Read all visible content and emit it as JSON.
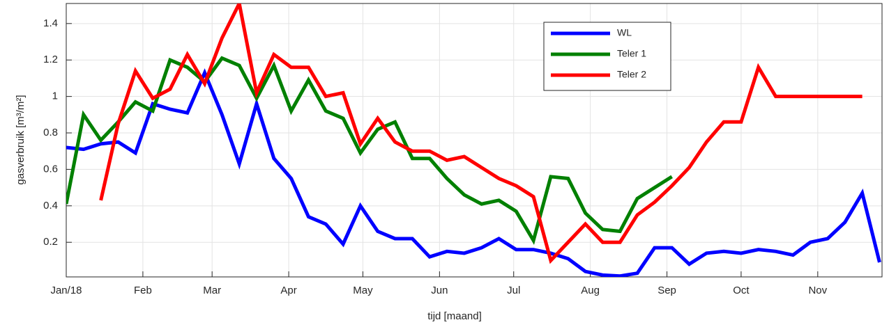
{
  "chart_data": {
    "type": "line",
    "xlabel": "tijd [maand]",
    "ylabel": "gasverbruik [m³/m²]",
    "x": [
      0,
      7,
      14,
      21,
      28,
      35,
      42,
      49,
      56,
      63,
      70,
      77,
      84,
      91,
      98,
      105,
      112,
      119,
      126,
      133,
      140,
      147,
      154,
      161,
      168,
      175,
      182,
      189,
      196,
      203,
      210,
      217,
      224,
      231,
      238,
      245,
      252,
      259,
      266,
      273,
      280,
      287,
      294,
      301,
      308,
      315,
      322,
      329
    ],
    "xlim": [
      0,
      330
    ],
    "xticks": [
      {
        "value": 0,
        "label": "Jan/18"
      },
      {
        "value": 31,
        "label": "Feb"
      },
      {
        "value": 59,
        "label": "Mar"
      },
      {
        "value": 90,
        "label": "Apr"
      },
      {
        "value": 120,
        "label": "May"
      },
      {
        "value": 151,
        "label": "Jun"
      },
      {
        "value": 181,
        "label": "Jul"
      },
      {
        "value": 212,
        "label": "Aug"
      },
      {
        "value": 243,
        "label": "Sep"
      },
      {
        "value": 273,
        "label": "Oct"
      },
      {
        "value": 304,
        "label": "Nov"
      }
    ],
    "ylim": [
      0.01,
      1.51
    ],
    "yticks": [
      0.2,
      0.4,
      0.6,
      0.8,
      1,
      1.2,
      1.4
    ],
    "grid": true,
    "series": [
      {
        "name": "WL",
        "color": "#0000ff",
        "values": [
          0.72,
          0.71,
          0.74,
          0.75,
          0.69,
          0.96,
          0.93,
          0.91,
          1.13,
          0.9,
          0.63,
          0.96,
          0.66,
          0.55,
          0.34,
          0.3,
          0.19,
          0.4,
          0.26,
          0.22,
          0.22,
          0.12,
          0.15,
          0.14,
          0.17,
          0.22,
          0.16,
          0.16,
          0.14,
          0.11,
          0.04,
          0.02,
          0.015,
          0.03,
          0.17,
          0.17,
          0.08,
          0.14,
          0.15,
          0.14,
          0.16,
          0.15,
          0.13,
          0.2,
          0.22,
          0.31,
          0.47,
          0.09
        ]
      },
      {
        "name": "Teler 1",
        "color": "#008000",
        "values": [
          0.41,
          0.9,
          0.76,
          0.86,
          0.97,
          0.92,
          1.2,
          1.16,
          1.08,
          1.21,
          1.17,
          0.99,
          1.17,
          0.92,
          1.09,
          0.92,
          0.88,
          0.69,
          0.82,
          0.86,
          0.66,
          0.66,
          0.55,
          0.46,
          0.41,
          0.43,
          0.37,
          0.21,
          0.56,
          0.55,
          0.36,
          0.27,
          0.26,
          0.44,
          0.5,
          0.56,
          null,
          null,
          null,
          null,
          null,
          null,
          null,
          null,
          null,
          null,
          null,
          null
        ]
      },
      {
        "name": "Teler 2",
        "color": "#ff0000",
        "values": [
          null,
          null,
          0.43,
          0.85,
          1.14,
          0.99,
          1.04,
          1.23,
          1.07,
          1.32,
          1.51,
          1.02,
          1.23,
          1.16,
          1.16,
          1.0,
          1.02,
          0.74,
          0.88,
          0.75,
          0.7,
          0.7,
          0.65,
          0.67,
          0.61,
          0.55,
          0.51,
          0.45,
          0.1,
          0.2,
          0.3,
          0.2,
          0.2,
          0.35,
          0.42,
          0.51,
          0.61,
          0.75,
          0.86,
          0.86,
          1.16,
          1.0,
          1.0,
          1.0,
          1.0,
          1.0,
          1.0,
          null
        ]
      }
    ]
  }
}
